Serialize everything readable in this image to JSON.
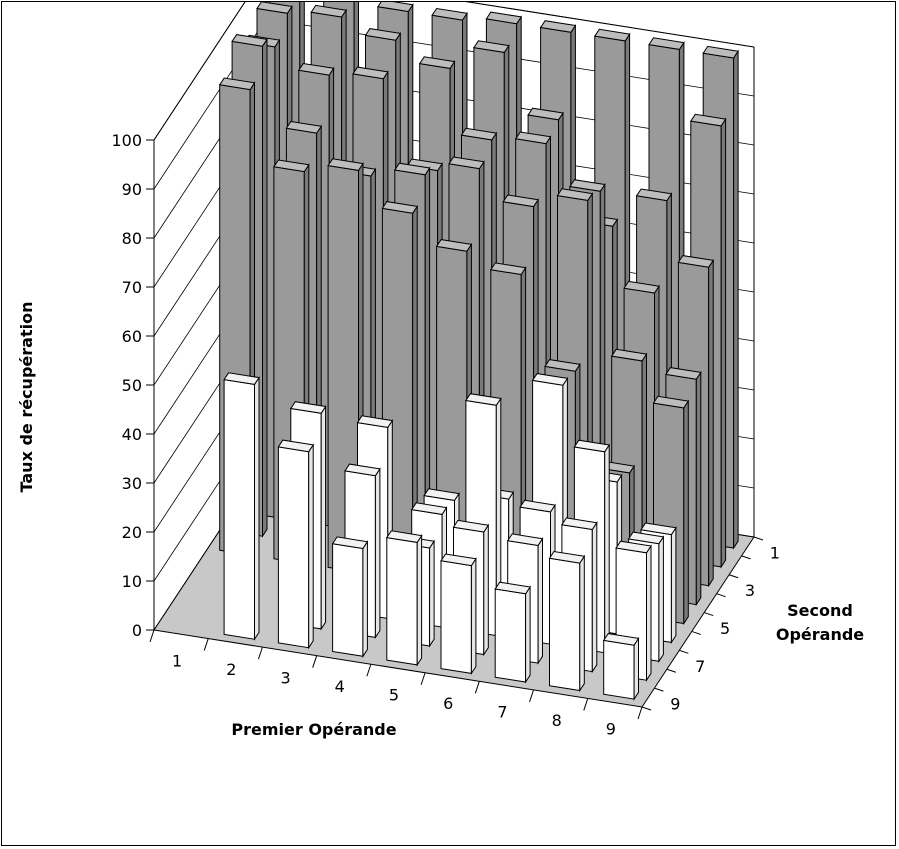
{
  "chart_data": {
    "type": "bar3d",
    "ylabel": "Taux de récupération",
    "xlabel": "Premier Opérande",
    "zlabel_lines": [
      "Second",
      "Opérande"
    ],
    "yticks": [
      0,
      10,
      20,
      30,
      40,
      50,
      60,
      70,
      80,
      90,
      100
    ],
    "ylim": [
      0,
      100
    ],
    "x_categories": [
      "1",
      "2",
      "3",
      "4",
      "5",
      "6",
      "7",
      "8",
      "9"
    ],
    "z_tick_labels": [
      "1",
      "3",
      "5",
      "7",
      "9"
    ],
    "colors": {
      "back_rows": "#9a9a9a",
      "front_rows": "#ffffff",
      "floor": "#c8c8c8"
    },
    "rows": [
      {
        "z": 9,
        "values": [
          null,
          52,
          40,
          22,
          25,
          22,
          18,
          26,
          11
        ]
      },
      {
        "z": 8,
        "values": [
          null,
          null,
          44,
          33,
          20,
          25,
          24,
          29,
          26
        ]
      },
      {
        "z": 7,
        "values": [
          null,
          null,
          null,
          39,
          23,
          47,
          27,
          41,
          24
        ]
      },
      {
        "z": 6,
        "values": [
          null,
          null,
          null,
          null,
          22,
          24,
          49,
          31,
          22
        ]
      },
      {
        "z": 5,
        "values": [
          95,
          80,
          82,
          75,
          69,
          66,
          48,
          29,
          44
        ]
      },
      {
        "z": 4,
        "values": [
          100,
          84,
          77,
          79,
          82,
          76,
          79,
          48,
          46
        ]
      },
      {
        "z": 3,
        "values": [
          96,
          92,
          93,
          76,
          84,
          85,
          77,
          58,
          65
        ]
      },
      {
        "z": 2,
        "values": [
          99,
          100,
          97,
          93,
          98,
          86,
          66,
          73,
          90
        ]
      },
      {
        "z": 1,
        "values": [
          100,
          100,
          99,
          99,
          100,
          100,
          100,
          100,
          100
        ]
      }
    ]
  }
}
